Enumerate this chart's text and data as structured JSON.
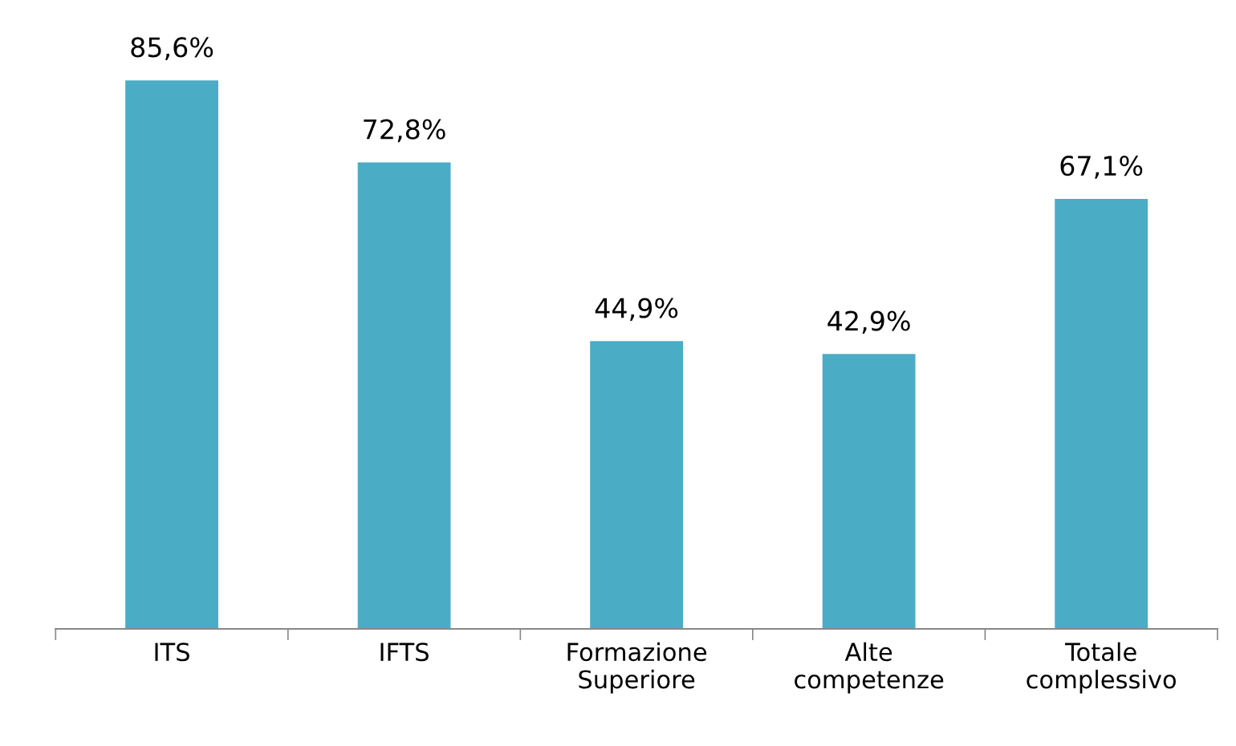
{
  "chart_data": {
    "type": "bar",
    "categories": [
      "ITS",
      "IFTS",
      "Formazione\nSuperiore",
      "Alte\ncompetenze",
      "Totale\ncomplessivo"
    ],
    "values": [
      85.6,
      72.8,
      44.9,
      42.9,
      67.1
    ],
    "value_labels": [
      "85,6%",
      "72,8%",
      "44,9%",
      "42,9%",
      "67,1%"
    ],
    "color": "#4bacc6",
    "grid": false,
    "legend": false
  }
}
